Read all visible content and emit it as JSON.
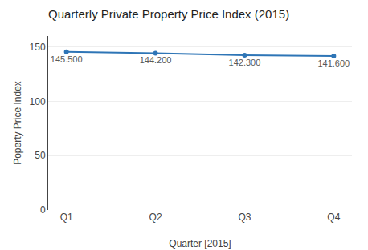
{
  "chart_data": {
    "type": "line",
    "title": "Quarterly Private Property Price Index (2015)",
    "xlabel": "Quarter [2015]",
    "ylabel": "Poperty Price Index",
    "categories": [
      "Q1",
      "Q2",
      "Q3",
      "Q4"
    ],
    "values": [
      145.5,
      144.2,
      142.3,
      141.6
    ],
    "value_labels": [
      "145.500",
      "144.200",
      "142.300",
      "141.600"
    ],
    "data_labels": true,
    "color": "#2E75B6",
    "ylim": [
      0,
      160
    ],
    "yticks": [
      0,
      50,
      100,
      150
    ],
    "grid": true
  }
}
